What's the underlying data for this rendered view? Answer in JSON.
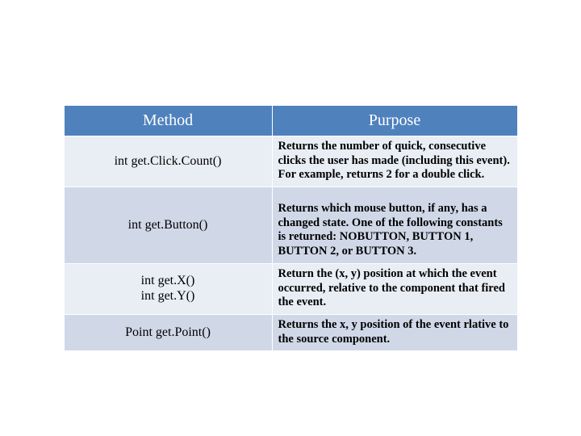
{
  "table": {
    "header_bg": "#4f81bd",
    "header_fg": "#ffffff",
    "band_a": "#e9edf4",
    "band_b": "#d0d8e8",
    "columns": [
      "Method",
      "Purpose"
    ],
    "rows": [
      {
        "method": "int get.Click.Count()",
        "purpose": "Returns the number of quick, consecutive clicks the user has made (including this event). For example, returns 2 for a double click.",
        "band": "a"
      },
      {
        "method": "int get.Button()",
        "purpose": "Returns which mouse button, if any, has a changed state. One of the following constants is returned: NOBUTTON, BUTTON 1, BUTTON 2, or BUTTON 3.",
        "band": "b",
        "purpose_top_space": true
      },
      {
        "method": "int get.X()\nint get.Y()",
        "purpose": "Return the (x, y) position at which the event occurred, relative to the component that fired the event.",
        "band": "a"
      },
      {
        "method": "Point get.Point()",
        "purpose": "Returns the x, y position of the event rlative to the source component.",
        "band": "b"
      }
    ]
  }
}
